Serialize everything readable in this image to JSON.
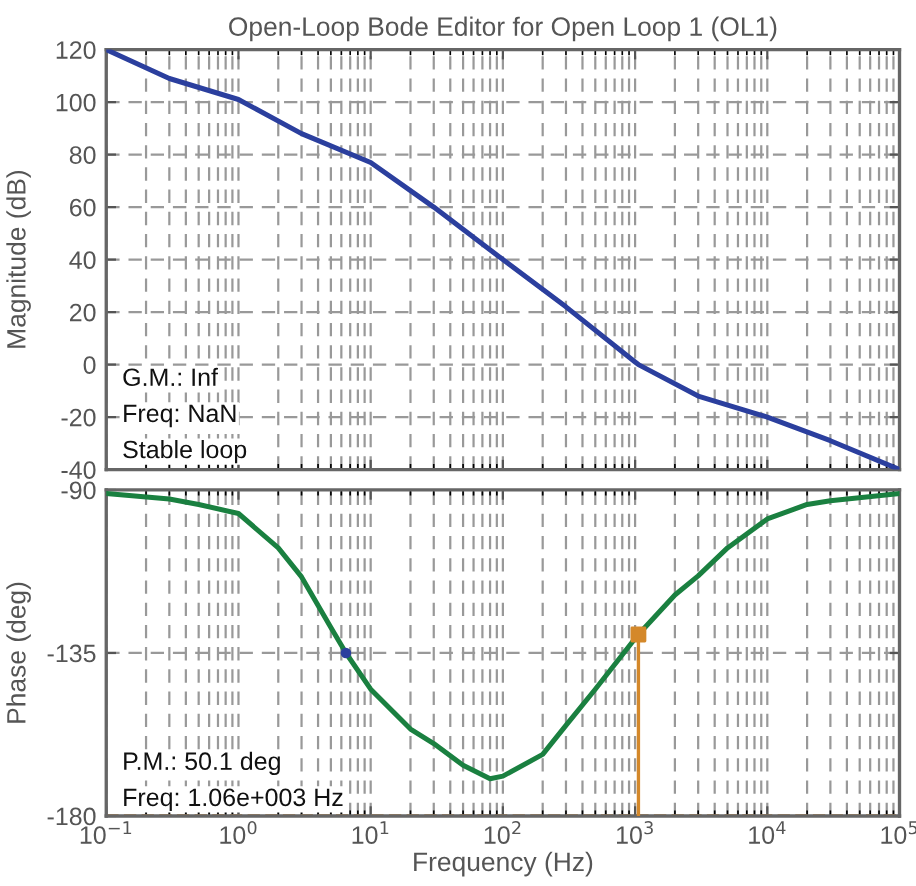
{
  "chart_data": [
    {
      "type": "line",
      "title": "Open-Loop Bode Editor for Open Loop 1 (OL1)",
      "ylabel": "Magnitude (dB)",
      "log": "x",
      "x": [
        0.1,
        0.3,
        1,
        3,
        10,
        30,
        100,
        300,
        1000,
        1060,
        3000,
        10000,
        30000,
        100000
      ],
      "series": [
        {
          "color": "#2b3f9e",
          "values": [
            120,
            109,
            101,
            88,
            77,
            60,
            40,
            22,
            1,
            0,
            -12,
            -20,
            -29,
            -40
          ]
        }
      ],
      "xlim": [
        0.1,
        100000
      ],
      "ylim": [
        -40,
        120
      ],
      "yticks": [
        -40,
        -20,
        0,
        20,
        40,
        60,
        80,
        100,
        120
      ],
      "xticks": [
        {
          "value": 0.1,
          "label": null
        },
        {
          "value": 1,
          "label": null
        },
        {
          "value": 10,
          "label": null
        },
        {
          "value": 100,
          "label": null
        },
        {
          "value": 1000,
          "label": null
        },
        {
          "value": 10000,
          "label": null
        },
        {
          "value": 100000,
          "label": null
        }
      ],
      "tick_labels": "y",
      "grid": true,
      "legend": false,
      "annotations": [
        "G.M.: Inf",
        "Freq: NaN",
        "Stable loop"
      ]
    },
    {
      "type": "line",
      "xlabel": "Frequency (Hz)",
      "ylabel": "Phase (deg)",
      "log": "x",
      "series": [
        {
          "color": "#1a8040",
          "x": [
            0.1,
            0.3,
            0.5,
            1,
            2,
            3,
            5,
            6.5,
            10,
            20,
            30,
            50,
            80,
            100,
            200,
            300,
            500,
            1000,
            1060,
            2000,
            3000,
            5000,
            10000,
            20000,
            30000,
            100000
          ],
          "values": [
            -91,
            -92.5,
            -94,
            -96.5,
            -106,
            -114,
            -128,
            -135,
            -145,
            -156,
            -160,
            -166,
            -169.7,
            -169,
            -163,
            -155,
            -145,
            -131,
            -129.9,
            -119,
            -113.7,
            -106,
            -98,
            -94,
            -93,
            -91
          ]
        },
        {
          "color": "#d4882a",
          "x": [
            1060,
            1060
          ],
          "values": [
            -180,
            -129.9
          ]
        },
        {
          "type": "scatter",
          "color": "#d4882a",
          "marker": "square",
          "x": [
            1060
          ],
          "values": [
            -129.9
          ]
        },
        {
          "type": "scatter",
          "color": "#2b3f9e",
          "marker": "circle",
          "x": [
            6.5
          ],
          "values": [
            -135
          ]
        }
      ],
      "ref_lines": [
        {
          "axis": "y",
          "value": -180,
          "color": "#d4882a",
          "line_style": "dashed"
        }
      ],
      "xlim": [
        0.1,
        100000
      ],
      "ylim": [
        -180,
        -90
      ],
      "yticks": [
        -180,
        -135,
        -90
      ],
      "xticks": [
        {
          "value": 0.1,
          "label": "10$^{−1}$"
        },
        {
          "value": 1,
          "label": "10$^{0}$"
        },
        {
          "value": 10,
          "label": "10$^{1}$"
        },
        {
          "value": 100,
          "label": "10$^{2}$"
        },
        {
          "value": 1000,
          "label": "10$^{3}$"
        },
        {
          "value": 10000,
          "label": "10$^{4}$"
        },
        {
          "value": 100000,
          "label": "10$^{5}$"
        }
      ],
      "grid": true,
      "legend": false,
      "annotations": [
        "P.M.: 50.1 deg",
        "Freq: 1.06e+003 Hz"
      ]
    }
  ]
}
